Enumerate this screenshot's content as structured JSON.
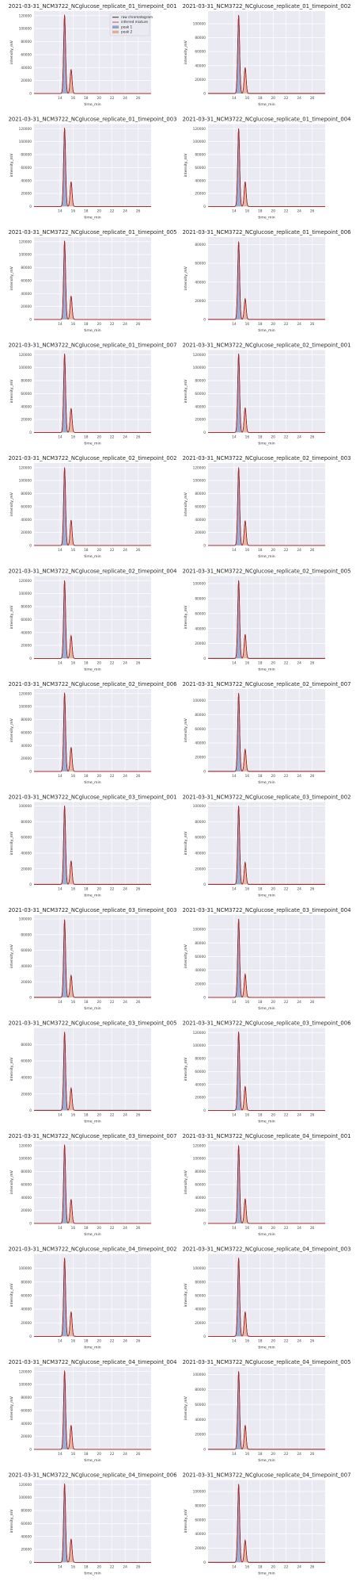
{
  "figure": {
    "xlabel": "time_min",
    "ylabel": "intensity_mV",
    "colors": {
      "background": "#EAEAF2",
      "grid": "#FFFFFF",
      "raw": "#000000",
      "mixture": "#C81E1E",
      "peak1": "#4C72B0",
      "peak2": "#DD8452"
    },
    "legend": {
      "placement": "upper-right",
      "entries": [
        "raw chromatogram",
        "inferred mixture",
        "peak 1",
        "peak 2"
      ]
    }
  },
  "chart_data": [
    {
      "type": "line",
      "title": "2021-03-31_NCM3722_NCglucose_replicate_01_timepoint_001",
      "xlim": [
        10,
        28
      ],
      "ylim": [
        0,
        127000
      ],
      "xticks": [
        14,
        16,
        18,
        20,
        22,
        24,
        26
      ],
      "yticks": [
        0,
        20000,
        40000,
        60000,
        80000,
        100000,
        120000
      ],
      "peaks": [
        {
          "name": "peak 1",
          "center": 14.7,
          "height": 121000
        },
        {
          "name": "peak 2",
          "center": 15.7,
          "height": 37000
        }
      ]
    },
    {
      "type": "line",
      "title": "2021-03-31_NCM3722_NCglucose_replicate_01_timepoint_002",
      "xlim": [
        10,
        28
      ],
      "ylim": [
        0,
        118000
      ],
      "xticks": [
        14,
        16,
        18,
        20,
        22,
        24,
        26
      ],
      "yticks": [
        0,
        20000,
        40000,
        60000,
        80000,
        100000
      ],
      "peaks": [
        {
          "name": "peak 1",
          "center": 14.7,
          "height": 112000
        },
        {
          "name": "peak 2",
          "center": 15.7,
          "height": 37000
        }
      ]
    },
    {
      "type": "line",
      "title": "2021-03-31_NCM3722_NCglucose_replicate_01_timepoint_003",
      "xlim": [
        10,
        28
      ],
      "ylim": [
        0,
        127000
      ],
      "xticks": [
        14,
        16,
        18,
        20,
        22,
        24,
        26
      ],
      "yticks": [
        0,
        20000,
        40000,
        60000,
        80000,
        100000,
        120000
      ],
      "peaks": [
        {
          "name": "peak 1",
          "center": 14.7,
          "height": 121000
        },
        {
          "name": "peak 2",
          "center": 15.7,
          "height": 38000
        }
      ]
    },
    {
      "type": "line",
      "title": "2021-03-31_NCM3722_NCglucose_replicate_01_timepoint_004",
      "xlim": [
        10,
        28
      ],
      "ylim": [
        0,
        127000
      ],
      "xticks": [
        14,
        16,
        18,
        20,
        22,
        24,
        26
      ],
      "yticks": [
        0,
        20000,
        40000,
        60000,
        80000,
        100000,
        120000
      ],
      "peaks": [
        {
          "name": "peak 1",
          "center": 14.7,
          "height": 120000
        },
        {
          "name": "peak 2",
          "center": 15.7,
          "height": 38000
        }
      ]
    },
    {
      "type": "line",
      "title": "2021-03-31_NCM3722_NCglucose_replicate_01_timepoint_005",
      "xlim": [
        10,
        28
      ],
      "ylim": [
        0,
        127000
      ],
      "xticks": [
        14,
        16,
        18,
        20,
        22,
        24,
        26
      ],
      "yticks": [
        0,
        20000,
        40000,
        60000,
        80000,
        100000,
        120000
      ],
      "peaks": [
        {
          "name": "peak 1",
          "center": 14.7,
          "height": 121000
        },
        {
          "name": "peak 2",
          "center": 15.7,
          "height": 36000
        }
      ]
    },
    {
      "type": "line",
      "title": "2021-03-31_NCM3722_NCglucose_replicate_01_timepoint_006",
      "xlim": [
        10,
        28
      ],
      "ylim": [
        0,
        88000
      ],
      "xticks": [
        14,
        16,
        18,
        20,
        22,
        24,
        26
      ],
      "yticks": [
        0,
        20000,
        40000,
        60000,
        80000
      ],
      "peaks": [
        {
          "name": "peak 1",
          "center": 14.7,
          "height": 83000
        },
        {
          "name": "peak 2",
          "center": 15.7,
          "height": 22000
        }
      ]
    },
    {
      "type": "line",
      "title": "2021-03-31_NCM3722_NCglucose_replicate_01_timepoint_007",
      "xlim": [
        10,
        28
      ],
      "ylim": [
        0,
        127000
      ],
      "xticks": [
        14,
        16,
        18,
        20,
        22,
        24,
        26
      ],
      "yticks": [
        0,
        20000,
        40000,
        60000,
        80000,
        100000,
        120000
      ],
      "peaks": [
        {
          "name": "peak 1",
          "center": 14.7,
          "height": 121000
        },
        {
          "name": "peak 2",
          "center": 15.7,
          "height": 37000
        }
      ]
    },
    {
      "type": "line",
      "title": "2021-03-31_NCM3722_NCglucose_replicate_02_timepoint_001",
      "xlim": [
        10,
        28
      ],
      "ylim": [
        0,
        127000
      ],
      "xticks": [
        14,
        16,
        18,
        20,
        22,
        24,
        26
      ],
      "yticks": [
        0,
        20000,
        40000,
        60000,
        80000,
        100000,
        120000
      ],
      "peaks": [
        {
          "name": "peak 1",
          "center": 14.7,
          "height": 121000
        },
        {
          "name": "peak 2",
          "center": 15.7,
          "height": 38000
        }
      ]
    },
    {
      "type": "line",
      "title": "2021-03-31_NCM3722_NCglucose_replicate_02_timepoint_002",
      "xlim": [
        10,
        28
      ],
      "ylim": [
        0,
        127000
      ],
      "xticks": [
        14,
        16,
        18,
        20,
        22,
        24,
        26
      ],
      "yticks": [
        0,
        20000,
        40000,
        60000,
        80000,
        100000,
        120000
      ],
      "peaks": [
        {
          "name": "peak 1",
          "center": 14.7,
          "height": 120000
        },
        {
          "name": "peak 2",
          "center": 15.7,
          "height": 39000
        }
      ]
    },
    {
      "type": "line",
      "title": "2021-03-31_NCM3722_NCglucose_replicate_02_timepoint_003",
      "xlim": [
        10,
        28
      ],
      "ylim": [
        0,
        127000
      ],
      "xticks": [
        14,
        16,
        18,
        20,
        22,
        24,
        26
      ],
      "yticks": [
        0,
        20000,
        40000,
        60000,
        80000,
        100000,
        120000
      ],
      "peaks": [
        {
          "name": "peak 1",
          "center": 14.7,
          "height": 120000
        },
        {
          "name": "peak 2",
          "center": 15.7,
          "height": 38000
        }
      ]
    },
    {
      "type": "line",
      "title": "2021-03-31_NCM3722_NCglucose_replicate_02_timepoint_004",
      "xlim": [
        10,
        28
      ],
      "ylim": [
        0,
        127000
      ],
      "xticks": [
        14,
        16,
        18,
        20,
        22,
        24,
        26
      ],
      "yticks": [
        0,
        20000,
        40000,
        60000,
        80000,
        100000,
        120000
      ],
      "peaks": [
        {
          "name": "peak 1",
          "center": 14.7,
          "height": 120000
        },
        {
          "name": "peak 2",
          "center": 15.7,
          "height": 35000
        }
      ]
    },
    {
      "type": "line",
      "title": "2021-03-31_NCM3722_NCglucose_replicate_02_timepoint_005",
      "xlim": [
        10,
        28
      ],
      "ylim": [
        0,
        110000
      ],
      "xticks": [
        14,
        16,
        18,
        20,
        22,
        24,
        26
      ],
      "yticks": [
        0,
        20000,
        40000,
        60000,
        80000,
        100000
      ],
      "peaks": [
        {
          "name": "peak 1",
          "center": 14.7,
          "height": 104000
        },
        {
          "name": "peak 2",
          "center": 15.7,
          "height": 32000
        }
      ]
    },
    {
      "type": "line",
      "title": "2021-03-31_NCM3722_NCglucose_replicate_02_timepoint_006",
      "xlim": [
        10,
        28
      ],
      "ylim": [
        0,
        127000
      ],
      "xticks": [
        14,
        16,
        18,
        20,
        22,
        24,
        26
      ],
      "yticks": [
        0,
        20000,
        40000,
        60000,
        80000,
        100000,
        120000
      ],
      "peaks": [
        {
          "name": "peak 1",
          "center": 14.7,
          "height": 121000
        },
        {
          "name": "peak 2",
          "center": 15.7,
          "height": 37000
        }
      ]
    },
    {
      "type": "line",
      "title": "2021-03-31_NCM3722_NCglucose_replicate_02_timepoint_007",
      "xlim": [
        10,
        28
      ],
      "ylim": [
        0,
        116000
      ],
      "xticks": [
        14,
        16,
        18,
        20,
        22,
        24,
        26
      ],
      "yticks": [
        0,
        20000,
        40000,
        60000,
        80000,
        100000
      ],
      "peaks": [
        {
          "name": "peak 1",
          "center": 14.7,
          "height": 110000
        },
        {
          "name": "peak 2",
          "center": 15.7,
          "height": 31000
        }
      ]
    },
    {
      "type": "line",
      "title": "2021-03-31_NCM3722_NCglucose_replicate_03_timepoint_001",
      "xlim": [
        10,
        28
      ],
      "ylim": [
        0,
        105000
      ],
      "xticks": [
        14,
        16,
        18,
        20,
        22,
        24,
        26
      ],
      "yticks": [
        0,
        20000,
        40000,
        60000,
        80000,
        100000
      ],
      "peaks": [
        {
          "name": "peak 1",
          "center": 14.7,
          "height": 100000
        },
        {
          "name": "peak 2",
          "center": 15.7,
          "height": 30000
        }
      ]
    },
    {
      "type": "line",
      "title": "2021-03-31_NCM3722_NCglucose_replicate_03_timepoint_002",
      "xlim": [
        10,
        28
      ],
      "ylim": [
        0,
        105000
      ],
      "xticks": [
        14,
        16,
        18,
        20,
        22,
        24,
        26
      ],
      "yticks": [
        0,
        20000,
        40000,
        60000,
        80000,
        100000
      ],
      "peaks": [
        {
          "name": "peak 1",
          "center": 14.7,
          "height": 100000
        },
        {
          "name": "peak 2",
          "center": 15.7,
          "height": 28000
        }
      ]
    },
    {
      "type": "line",
      "title": "2021-03-31_NCM3722_NCglucose_replicate_03_timepoint_003",
      "xlim": [
        10,
        28
      ],
      "ylim": [
        0,
        105000
      ],
      "xticks": [
        14,
        16,
        18,
        20,
        22,
        24,
        26
      ],
      "yticks": [
        0,
        20000,
        40000,
        60000,
        80000,
        100000
      ],
      "peaks": [
        {
          "name": "peak 1",
          "center": 14.7,
          "height": 99000
        },
        {
          "name": "peak 2",
          "center": 15.7,
          "height": 28000
        }
      ]
    },
    {
      "type": "line",
      "title": "2021-03-31_NCM3722_NCglucose_replicate_03_timepoint_004",
      "xlim": [
        10,
        28
      ],
      "ylim": [
        0,
        121000
      ],
      "xticks": [
        14,
        16,
        18,
        20,
        22,
        24,
        26
      ],
      "yticks": [
        0,
        20000,
        40000,
        60000,
        80000,
        100000
      ],
      "peaks": [
        {
          "name": "peak 1",
          "center": 14.7,
          "height": 115000
        },
        {
          "name": "peak 2",
          "center": 15.7,
          "height": 34000
        }
      ]
    },
    {
      "type": "line",
      "title": "2021-03-31_NCM3722_NCglucose_replicate_03_timepoint_005",
      "xlim": [
        10,
        28
      ],
      "ylim": [
        0,
        100000
      ],
      "xticks": [
        14,
        16,
        18,
        20,
        22,
        24,
        26
      ],
      "yticks": [
        0,
        20000,
        40000,
        60000,
        80000
      ],
      "peaks": [
        {
          "name": "peak 1",
          "center": 14.7,
          "height": 95000
        },
        {
          "name": "peak 2",
          "center": 15.7,
          "height": 27000
        }
      ]
    },
    {
      "type": "line",
      "title": "2021-03-31_NCM3722_NCglucose_replicate_03_timepoint_006",
      "xlim": [
        10,
        28
      ],
      "ylim": [
        0,
        127000
      ],
      "xticks": [
        14,
        16,
        18,
        20,
        22,
        24,
        26
      ],
      "yticks": [
        0,
        20000,
        40000,
        60000,
        80000,
        100000,
        120000
      ],
      "peaks": [
        {
          "name": "peak 1",
          "center": 14.7,
          "height": 121000
        },
        {
          "name": "peak 2",
          "center": 15.7,
          "height": 37000
        }
      ]
    },
    {
      "type": "line",
      "title": "2021-03-31_NCM3722_NCglucose_replicate_03_timepoint_007",
      "xlim": [
        10,
        28
      ],
      "ylim": [
        0,
        127000
      ],
      "xticks": [
        14,
        16,
        18,
        20,
        22,
        24,
        26
      ],
      "yticks": [
        0,
        20000,
        40000,
        60000,
        80000,
        100000,
        120000
      ],
      "peaks": [
        {
          "name": "peak 1",
          "center": 14.7,
          "height": 121000
        },
        {
          "name": "peak 2",
          "center": 15.7,
          "height": 37000
        }
      ]
    },
    {
      "type": "line",
      "title": "2021-03-31_NCM3722_NCglucose_replicate_04_timepoint_001",
      "xlim": [
        10,
        28
      ],
      "ylim": [
        0,
        127000
      ],
      "xticks": [
        14,
        16,
        18,
        20,
        22,
        24,
        26
      ],
      "yticks": [
        0,
        20000,
        40000,
        60000,
        80000,
        100000,
        120000
      ],
      "peaks": [
        {
          "name": "peak 1",
          "center": 14.7,
          "height": 120000
        },
        {
          "name": "peak 2",
          "center": 15.7,
          "height": 38000
        }
      ]
    },
    {
      "type": "line",
      "title": "2021-03-31_NCM3722_NCglucose_replicate_04_timepoint_002",
      "xlim": [
        10,
        28
      ],
      "ylim": [
        0,
        121000
      ],
      "xticks": [
        14,
        16,
        18,
        20,
        22,
        24,
        26
      ],
      "yticks": [
        0,
        20000,
        40000,
        60000,
        80000,
        100000
      ],
      "peaks": [
        {
          "name": "peak 1",
          "center": 14.7,
          "height": 115000
        },
        {
          "name": "peak 2",
          "center": 15.7,
          "height": 36000
        }
      ]
    },
    {
      "type": "line",
      "title": "2021-03-31_NCM3722_NCglucose_replicate_04_timepoint_003",
      "xlim": [
        10,
        28
      ],
      "ylim": [
        0,
        121000
      ],
      "xticks": [
        14,
        16,
        18,
        20,
        22,
        24,
        26
      ],
      "yticks": [
        0,
        20000,
        40000,
        60000,
        80000,
        100000
      ],
      "peaks": [
        {
          "name": "peak 1",
          "center": 14.7,
          "height": 115000
        },
        {
          "name": "peak 2",
          "center": 15.7,
          "height": 36000
        }
      ]
    },
    {
      "type": "line",
      "title": "2021-03-31_NCM3722_NCglucose_replicate_04_timepoint_004",
      "xlim": [
        10,
        28
      ],
      "ylim": [
        0,
        127000
      ],
      "xticks": [
        14,
        16,
        18,
        20,
        22,
        24,
        26
      ],
      "yticks": [
        0,
        20000,
        40000,
        60000,
        80000,
        100000,
        120000
      ],
      "peaks": [
        {
          "name": "peak 1",
          "center": 14.7,
          "height": 121000
        },
        {
          "name": "peak 2",
          "center": 15.7,
          "height": 37000
        }
      ]
    },
    {
      "type": "line",
      "title": "2021-03-31_NCM3722_NCglucose_replicate_04_timepoint_005",
      "xlim": [
        10,
        28
      ],
      "ylim": [
        0,
        110000
      ],
      "xticks": [
        14,
        16,
        18,
        20,
        22,
        24,
        26
      ],
      "yticks": [
        0,
        20000,
        40000,
        60000,
        80000,
        100000
      ],
      "peaks": [
        {
          "name": "peak 1",
          "center": 14.7,
          "height": 104000
        },
        {
          "name": "peak 2",
          "center": 15.7,
          "height": 32000
        }
      ]
    },
    {
      "type": "line",
      "title": "2021-03-31_NCM3722_NCglucose_replicate_04_timepoint_006",
      "xlim": [
        10,
        28
      ],
      "ylim": [
        0,
        127000
      ],
      "xticks": [
        14,
        16,
        18,
        20,
        22,
        24,
        26
      ],
      "yticks": [
        0,
        20000,
        40000,
        60000,
        80000,
        100000,
        120000
      ],
      "peaks": [
        {
          "name": "peak 1",
          "center": 14.7,
          "height": 121000
        },
        {
          "name": "peak 2",
          "center": 15.7,
          "height": 36000
        }
      ]
    },
    {
      "type": "line",
      "title": "2021-03-31_NCM3722_NCglucose_replicate_04_timepoint_007",
      "xlim": [
        10,
        28
      ],
      "ylim": [
        0,
        116000
      ],
      "xticks": [
        14,
        16,
        18,
        20,
        22,
        24,
        26
      ],
      "yticks": [
        0,
        20000,
        40000,
        60000,
        80000,
        100000
      ],
      "peaks": [
        {
          "name": "peak 1",
          "center": 14.7,
          "height": 110000
        },
        {
          "name": "peak 2",
          "center": 15.7,
          "height": 31000
        }
      ]
    }
  ]
}
